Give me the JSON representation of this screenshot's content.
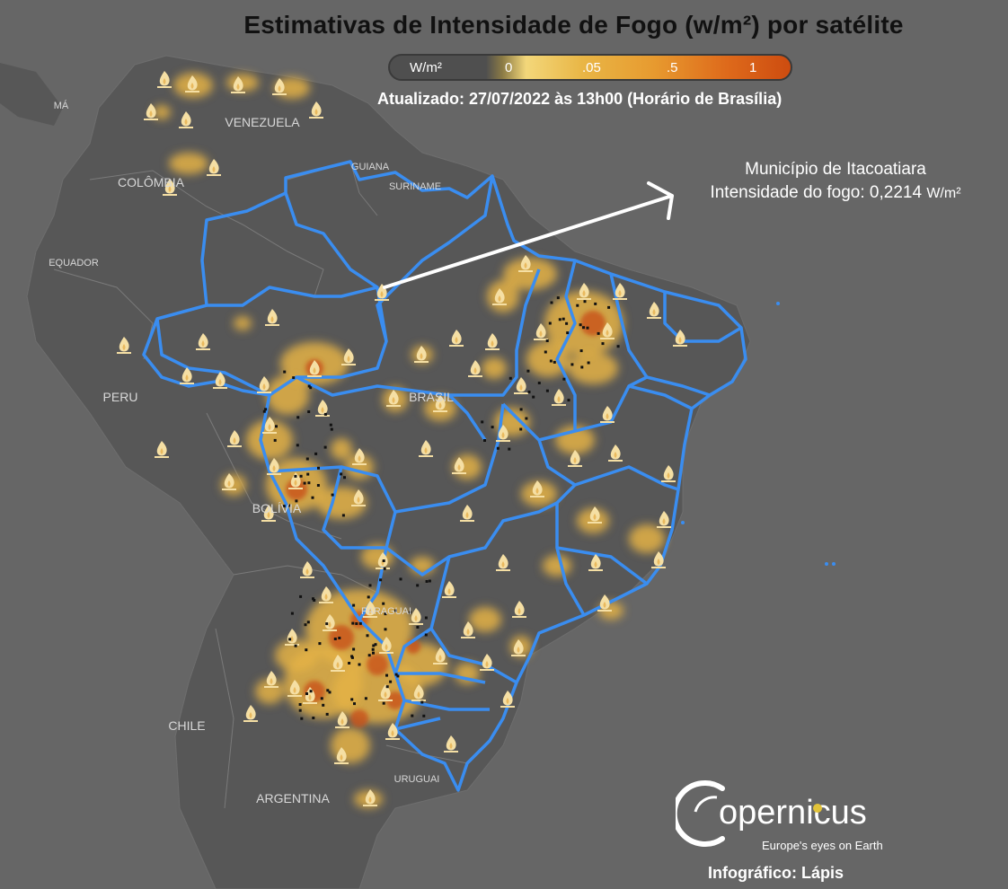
{
  "title": "Estimativas de Intensidade de Fogo (w/m²) por satélite",
  "legend": {
    "unit": "W/m²",
    "ticks": [
      "0",
      ".05",
      ".5",
      "1"
    ],
    "colors": [
      "#4f4f4f",
      "#f3d77a",
      "#e9b646",
      "#de6a1b",
      "#cd4c10"
    ]
  },
  "updated": "Atualizado: 27/07/2022 às 13h00 (Horário de Brasília)",
  "annotation": {
    "line1": "Município de Itacoatiara",
    "line2_prefix": "Intensidade do fogo: 0,2214",
    "line2_unit": "W/m²"
  },
  "countries": {
    "venezuela": "VENEZUELA",
    "colombia": "COLÔMBIA",
    "guiana": "GUIANA",
    "suriname": "SURINAME",
    "equador": "EQUADOR",
    "peru": "PERU",
    "brasil": "BRASIL",
    "bolivia": "BOLÍVIA",
    "paraguai": "PARAGUAI",
    "chile": "CHILE",
    "argentina": "ARGENTINA",
    "uruguai": "URUGUAI",
    "panama": "MÁ"
  },
  "logo": {
    "word": "opernicus",
    "tagline": "Europe's eyes on Earth"
  },
  "credit": "Infográfico: Lápis",
  "colors": {
    "background": "#666666",
    "land": "#575757",
    "brazil_border": "#3a8df0",
    "fire_low": "#e4b247",
    "fire_high": "#c8531b",
    "flame": "#f5dfa4"
  }
}
